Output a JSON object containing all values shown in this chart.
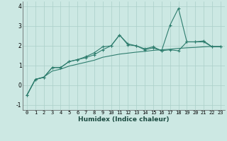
{
  "xlabel": "Humidex (Indice chaleur)",
  "x": [
    0,
    1,
    2,
    3,
    4,
    5,
    6,
    7,
    8,
    9,
    10,
    11,
    12,
    13,
    14,
    15,
    16,
    17,
    18,
    19,
    20,
    21,
    22,
    23
  ],
  "line1": [
    -0.5,
    0.3,
    0.4,
    0.9,
    0.9,
    1.2,
    1.3,
    1.4,
    1.55,
    1.8,
    2.0,
    2.55,
    2.05,
    2.0,
    1.8,
    1.9,
    1.75,
    1.8,
    1.75,
    2.2,
    2.2,
    2.2,
    1.95,
    1.95
  ],
  "line2": [
    -0.5,
    0.3,
    0.4,
    0.9,
    0.9,
    1.2,
    1.3,
    1.45,
    1.65,
    1.95,
    2.0,
    2.55,
    2.1,
    2.0,
    1.85,
    1.95,
    1.75,
    3.05,
    3.9,
    2.2,
    2.2,
    2.25,
    1.95,
    1.95
  ],
  "line3": [
    -0.5,
    0.3,
    0.42,
    0.72,
    0.82,
    0.97,
    1.07,
    1.17,
    1.27,
    1.42,
    1.5,
    1.58,
    1.63,
    1.68,
    1.72,
    1.77,
    1.8,
    1.83,
    1.87,
    1.9,
    1.92,
    1.95,
    1.97,
    1.97
  ],
  "line_color": "#2e7d6e",
  "bg_color": "#cce8e3",
  "grid_color": "#aacfc8",
  "ylim": [
    -1.25,
    4.25
  ],
  "yticks": [
    -1,
    0,
    1,
    2,
    3,
    4
  ],
  "xlim": [
    -0.5,
    23.5
  ],
  "marker_size": 3,
  "linewidth": 0.8
}
